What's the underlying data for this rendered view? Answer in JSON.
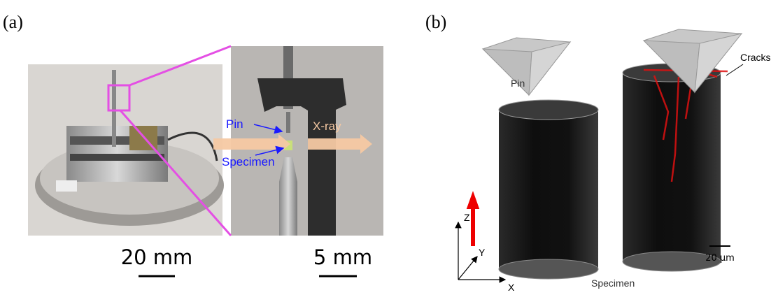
{
  "panel_a": {
    "label": "(a)",
    "pin": "Pin",
    "xray": "X-ray",
    "specimen": "Specimen",
    "scale_left": "20 mm",
    "scale_right": "5 mm"
  },
  "panel_b": {
    "label": "(b)",
    "pin": "Pin",
    "cracks": "Cracks",
    "specimen": "Specimen",
    "axis_z": "Z",
    "axis_y": "Y",
    "axis_x": "X",
    "scale": "20 μm"
  }
}
